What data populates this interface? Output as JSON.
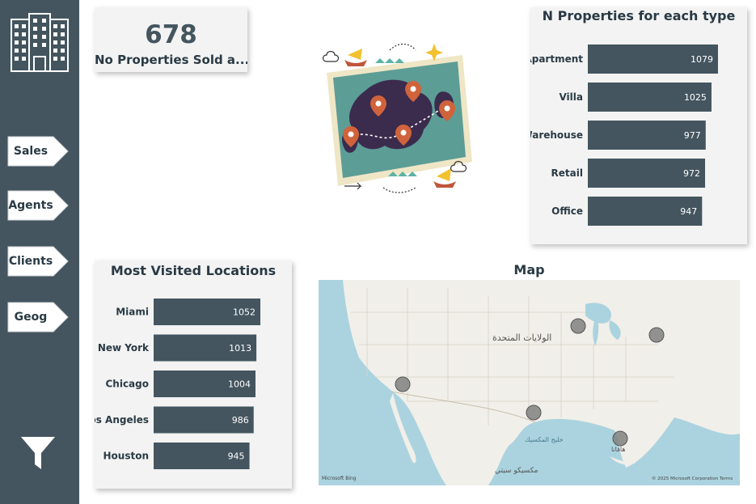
{
  "sidebar": {
    "nav": [
      {
        "label": "Sales"
      },
      {
        "label": "Agents"
      },
      {
        "label": "Clients"
      },
      {
        "label": "Geog"
      }
    ],
    "icons": [
      "building-icon",
      "funnel-icon"
    ]
  },
  "kpi": {
    "value": "678",
    "label": "No Properties Sold a..."
  },
  "map": {
    "title": "Map",
    "country_label": "الولايات المتحدة",
    "gulf_label": "خليج المكسيك",
    "mexico_label": "مكسيكو سيتي",
    "havana_label": "هافانا",
    "attribution": "© 2025 Microsoft Corporation Terms",
    "provider": "Microsoft Bing",
    "bubble_color": "#808080"
  },
  "colors": {
    "sidebar": "#44555f",
    "bar": "#44555f",
    "card": "#f3f3f3"
  },
  "chart_data": [
    {
      "type": "bar",
      "orientation": "horizontal",
      "title": "N Properties for each type",
      "categories": [
        "Apartment",
        "Villa",
        "Warehouse",
        "Retail",
        "Office"
      ],
      "values": [
        1079,
        1025,
        977,
        972,
        947
      ],
      "data_labels": [
        "1079",
        "1025",
        "977",
        "972",
        "947"
      ]
    },
    {
      "type": "bar",
      "orientation": "horizontal",
      "title": "Most Visited Locations",
      "categories": [
        "Miami",
        "New York",
        "Chicago",
        "Los Angeles",
        "Houston"
      ],
      "values": [
        1052,
        1013,
        1004,
        986,
        945
      ],
      "data_labels": [
        "1052",
        "1013",
        "1004",
        "986",
        "945"
      ]
    }
  ]
}
